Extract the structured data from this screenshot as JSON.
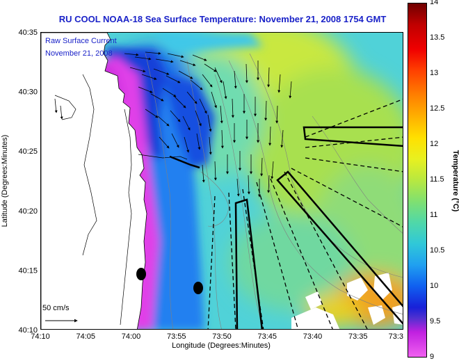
{
  "title": "RU COOL  NOAA-18  Sea Surface Temperature:  November 21, 2008 1754 GMT",
  "legend": {
    "line1": "Raw Surface Current",
    "line2": "November 21, 2008",
    "scale_label": "50 cm/s"
  },
  "axes": {
    "xlabel": "Longitude (Degrees:Minutes)",
    "ylabel": "Latitude (Degrees:Minutes)",
    "xticks": [
      "74:10",
      "74:05",
      "74:00",
      "73:55",
      "73:50",
      "73:45",
      "73:40",
      "73:35",
      "73:3"
    ],
    "yticks": [
      "40:35",
      "40:30",
      "40:25",
      "40:20",
      "40:15",
      "40:10"
    ]
  },
  "colorbar": {
    "label": "Temperature (°C)",
    "ticks": [
      "14",
      "13.5",
      "13",
      "12.5",
      "12",
      "11.5",
      "11",
      "10.5",
      "10",
      "9.5",
      "9"
    ],
    "min": 9,
    "max": 14
  },
  "colors": {
    "title": "#1a22c8",
    "land": "#ffffff",
    "coast": "#000000"
  }
}
